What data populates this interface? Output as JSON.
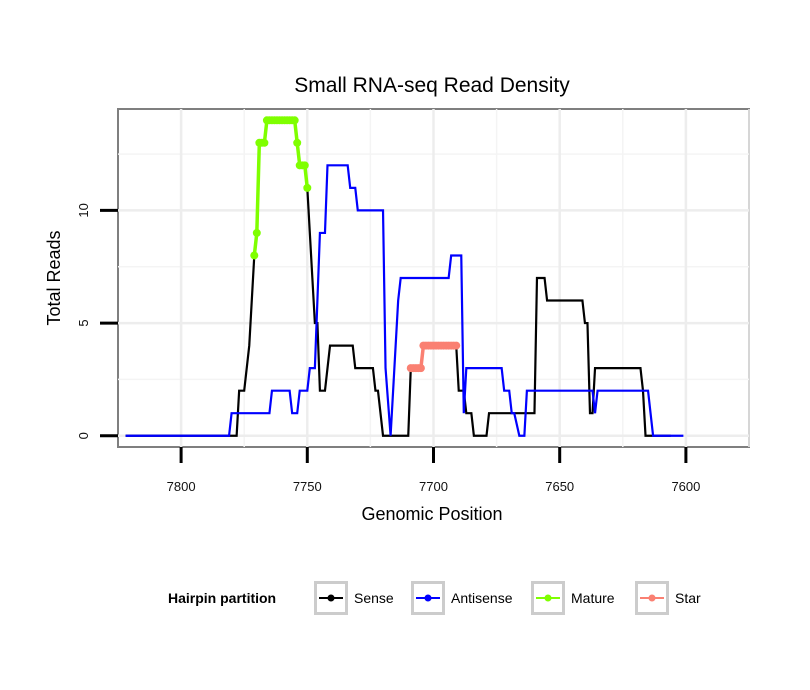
{
  "chart_data": {
    "type": "line",
    "title": "Small RNA-seq Read Density",
    "xlabel": "Genomic Position",
    "ylabel": "Total Reads",
    "xlim": [
      7825,
      7575
    ],
    "x_reversed": true,
    "ylim": [
      -0.5,
      14.5
    ],
    "x_ticks": [
      7800,
      7750,
      7700,
      7650,
      7600
    ],
    "x_tick_labels": [
      "7800",
      "7750",
      "7700",
      "7650",
      "7600"
    ],
    "y_ticks": [
      0,
      5,
      10
    ],
    "y_tick_labels": [
      "0",
      "5",
      "10"
    ],
    "grid": true,
    "legend": {
      "title": "Hairpin partition",
      "position": "bottom",
      "entries": [
        {
          "label": "Sense",
          "color": "#000000"
        },
        {
          "label": "Antisense",
          "color": "#0000ff"
        },
        {
          "label": "Mature",
          "color": "#7fff00"
        },
        {
          "label": "Star",
          "color": "#fa8072"
        }
      ]
    },
    "series": [
      {
        "name": "Sense",
        "color": "#000000",
        "points": [
          [
            7822,
            0
          ],
          [
            7778,
            0
          ],
          [
            7777,
            2
          ],
          [
            7775,
            2
          ],
          [
            7773,
            4
          ],
          [
            7771,
            8
          ],
          [
            7770,
            9
          ],
          [
            7769,
            13
          ],
          [
            7767,
            13
          ],
          [
            7766,
            14
          ],
          [
            7755,
            14
          ],
          [
            7754,
            13
          ],
          [
            7753,
            12
          ],
          [
            7751,
            12
          ],
          [
            7750,
            11
          ],
          [
            7748,
            7
          ],
          [
            7747,
            5
          ],
          [
            7746,
            5
          ],
          [
            7745,
            2
          ],
          [
            7743,
            2
          ],
          [
            7741,
            4
          ],
          [
            7732,
            4
          ],
          [
            7731,
            3
          ],
          [
            7724,
            3
          ],
          [
            7723,
            2
          ],
          [
            7722,
            2
          ],
          [
            7721,
            1
          ],
          [
            7720,
            0
          ],
          [
            7710,
            0
          ],
          [
            7709,
            3
          ],
          [
            7705,
            3
          ],
          [
            7704,
            4
          ],
          [
            7691,
            4
          ],
          [
            7690,
            2
          ],
          [
            7688,
            2
          ],
          [
            7687,
            1
          ],
          [
            7685,
            1
          ],
          [
            7684,
            0
          ],
          [
            7679,
            0
          ],
          [
            7678,
            1
          ],
          [
            7660,
            1
          ],
          [
            7659,
            7
          ],
          [
            7656,
            7
          ],
          [
            7655,
            6
          ],
          [
            7641,
            6
          ],
          [
            7640,
            5
          ],
          [
            7639,
            5
          ],
          [
            7638,
            1
          ],
          [
            7637,
            1
          ],
          [
            7636,
            3
          ],
          [
            7618,
            3
          ],
          [
            7617,
            2
          ],
          [
            7616,
            0
          ],
          [
            7606,
            0
          ]
        ]
      },
      {
        "name": "Antisense",
        "color": "#0000ff",
        "points": [
          [
            7822,
            0
          ],
          [
            7781,
            0
          ],
          [
            7780,
            1
          ],
          [
            7773,
            1
          ],
          [
            7772,
            1
          ],
          [
            7765,
            1
          ],
          [
            7764,
            2
          ],
          [
            7757,
            2
          ],
          [
            7756,
            1
          ],
          [
            7754,
            1
          ],
          [
            7753,
            2
          ],
          [
            7750,
            2
          ],
          [
            7749,
            3
          ],
          [
            7747,
            3
          ],
          [
            7746,
            6
          ],
          [
            7745,
            9
          ],
          [
            7743,
            9
          ],
          [
            7742,
            12
          ],
          [
            7734,
            12
          ],
          [
            7733,
            11
          ],
          [
            7731,
            11
          ],
          [
            7730,
            10
          ],
          [
            7720,
            10
          ],
          [
            7719,
            3
          ],
          [
            7717,
            0
          ],
          [
            7716,
            2
          ],
          [
            7715,
            4
          ],
          [
            7714,
            6
          ],
          [
            7713,
            7
          ],
          [
            7694,
            7
          ],
          [
            7693,
            8
          ],
          [
            7689,
            8
          ],
          [
            7688,
            1
          ],
          [
            7687,
            3
          ],
          [
            7673,
            3
          ],
          [
            7672,
            2
          ],
          [
            7670,
            2
          ],
          [
            7669,
            1
          ],
          [
            7668,
            1
          ],
          [
            7666,
            0
          ],
          [
            7664,
            0
          ],
          [
            7663,
            2
          ],
          [
            7637,
            2
          ],
          [
            7636,
            1
          ],
          [
            7635,
            2
          ],
          [
            7615,
            2
          ],
          [
            7614,
            1
          ],
          [
            7613,
            0
          ],
          [
            7601,
            0
          ]
        ]
      },
      {
        "name": "Mature",
        "color": "#7fff00",
        "points": [
          [
            7771,
            8
          ],
          [
            7770,
            9
          ],
          [
            7769,
            13
          ],
          [
            7767,
            13
          ],
          [
            7766,
            14
          ],
          [
            7755,
            14
          ],
          [
            7754,
            13
          ],
          [
            7753,
            12
          ],
          [
            7751,
            12
          ],
          [
            7750,
            11
          ]
        ]
      },
      {
        "name": "Star",
        "color": "#fa8072",
        "points": [
          [
            7709,
            3
          ],
          [
            7705,
            3
          ],
          [
            7704,
            4
          ],
          [
            7691,
            4
          ]
        ]
      }
    ]
  }
}
